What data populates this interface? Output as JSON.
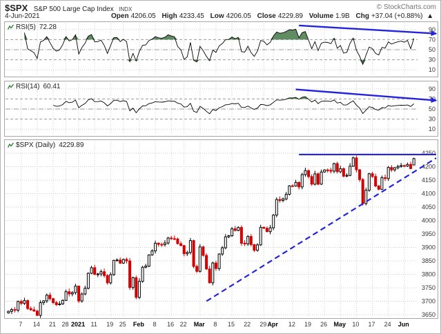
{
  "header": {
    "symbol": "$SPX",
    "name": "S&P 500 Large Cap Index",
    "exchange": "INDX",
    "date": "4-Jun-2021",
    "credit": "© StockCharts.com",
    "quote": {
      "open_label": "Open",
      "open": "4206.05",
      "high_label": "High",
      "high": "4233.45",
      "low_label": "Low",
      "low": "4206.05",
      "close_label": "Close",
      "close": "4229.89",
      "volume_label": "Volume",
      "volume": "1.9B",
      "chg_label": "Chg",
      "chg": "+37.04 (+0.88%)",
      "chg_dir": "▲"
    }
  },
  "panels": {
    "rsi5": {
      "label": "RSI(5)",
      "value": "72.28"
    },
    "rsi14": {
      "label": "RSI(14)",
      "value": "60.41"
    },
    "price": {
      "label": "$SPX (Daily)",
      "value": "4229.89"
    }
  },
  "chart_data": {
    "type": "candlestick",
    "title": "$SPX S&P 500 Large Cap Index - Daily with RSI(5) and RSI(14)",
    "price_yticks": [
      4250,
      4200,
      4150,
      4100,
      4050,
      4000,
      3950,
      3900,
      3850,
      3800,
      3750,
      3700,
      3650
    ],
    "price_ylim": [
      3650,
      4250
    ],
    "rsi_yticks": [
      90,
      70,
      50,
      30,
      10
    ],
    "x_tick_labels": [
      {
        "i": 4,
        "label": "7",
        "bold": false
      },
      {
        "i": 9,
        "label": "14",
        "bold": false
      },
      {
        "i": 14,
        "label": "21",
        "bold": false
      },
      {
        "i": 18,
        "label": "28",
        "bold": false
      },
      {
        "i": 22,
        "label": "2021",
        "bold": true
      },
      {
        "i": 27,
        "label": "11",
        "bold": false
      },
      {
        "i": 32,
        "label": "19",
        "bold": false
      },
      {
        "i": 36,
        "label": "25",
        "bold": false
      },
      {
        "i": 41,
        "label": "Feb",
        "bold": true
      },
      {
        "i": 46,
        "label": "8",
        "bold": false
      },
      {
        "i": 51,
        "label": "16",
        "bold": false
      },
      {
        "i": 55,
        "label": "22",
        "bold": false
      },
      {
        "i": 60,
        "label": "Mar",
        "bold": true
      },
      {
        "i": 65,
        "label": "8",
        "bold": false
      },
      {
        "i": 70,
        "label": "15",
        "bold": false
      },
      {
        "i": 75,
        "label": "22",
        "bold": false
      },
      {
        "i": 80,
        "label": "29",
        "bold": false
      },
      {
        "i": 83,
        "label": "Apr",
        "bold": true
      },
      {
        "i": 89,
        "label": "12",
        "bold": false
      },
      {
        "i": 94,
        "label": "19",
        "bold": false
      },
      {
        "i": 99,
        "label": "26",
        "bold": false
      },
      {
        "i": 104,
        "label": "May",
        "bold": true
      },
      {
        "i": 109,
        "label": "10",
        "bold": false
      },
      {
        "i": 114,
        "label": "17",
        "bold": false
      },
      {
        "i": 119,
        "label": "24",
        "bold": false
      },
      {
        "i": 124,
        "label": "Jun",
        "bold": true
      }
    ],
    "closes": [
      3662.45,
      3669.01,
      3666.72,
      3699.12,
      3691.96,
      3702.25,
      3672.82,
      3668.1,
      3663.46,
      3647.49,
      3694.62,
      3701.17,
      3722.48,
      3709.41,
      3694.92,
      3687.26,
      3690.01,
      3703.06,
      3735.36,
      3727.04,
      3732.04,
      3756.07,
      3700.65,
      3726.86,
      3748.14,
      3803.79,
      3824.68,
      3799.61,
      3801.19,
      3809.84,
      3795.54,
      3768.25,
      3798.91,
      3851.85,
      3853.07,
      3841.47,
      3855.36,
      3849.62,
      3750.77,
      3787.38,
      3714.24,
      3773.86,
      3826.31,
      3830.17,
      3871.74,
      3886.83,
      3915.59,
      3911.23,
      3909.88,
      3916.38,
      3934.83,
      3932.59,
      3931.33,
      3913.97,
      3906.71,
      3876.5,
      3881.37,
      3925.43,
      3829.34,
      3811.15,
      3901.82,
      3870.29,
      3819.72,
      3768.47,
      3841.94,
      3821.35,
      3875.44,
      3898.81,
      3939.34,
      3943.34,
      3968.94,
      3962.71,
      3974.12,
      3915.46,
      3913.1,
      3940.59,
      3910.52,
      3889.14,
      3909.52,
      3974.54,
      3971.09,
      3958.55,
      3972.89,
      4019.87,
      4077.91,
      4073.94,
      4079.95,
      4097.17,
      4128.8,
      4127.99,
      4141.59,
      4124.66,
      4170.42,
      4185.47,
      4163.26,
      4134.94,
      4173.42,
      4134.98,
      4180.17,
      4187.62,
      4186.72,
      4183.18,
      4211.47,
      4181.17,
      4192.66,
      4164.66,
      4167.59,
      4201.62,
      4232.6,
      4188.43,
      4152.1,
      4063.04,
      4112.5,
      4173.85,
      4163.29,
      4127.83,
      4115.68,
      4159.12,
      4155.86,
      4197.05,
      4188.13,
      4195.99,
      4200.88,
      4204.11,
      4202.04,
      4208.12,
      4192.85,
      4229.89
    ],
    "last_candle": {
      "open": 4206.05,
      "high": 4233.45,
      "low": 4206.05,
      "close": 4229.89
    },
    "indicators": [
      {
        "name": "RSI(5)",
        "period": 5,
        "last_value": 72.28,
        "overbought": 70,
        "oversold": 30,
        "midline": 50
      },
      {
        "name": "RSI(14)",
        "period": 14,
        "last_value": 60.41,
        "overbought": 70,
        "oversold": 30,
        "midline": 50
      }
    ],
    "annotations": [
      {
        "panel": "rsi5",
        "type": "arrow",
        "from": {
          "i": 91,
          "v": 98
        },
        "to": {
          "i": 135,
          "v": 82
        }
      },
      {
        "panel": "rsi14",
        "type": "arrow",
        "from": {
          "i": 90,
          "v": 89
        },
        "to": {
          "i": 135,
          "v": 67
        }
      },
      {
        "panel": "price",
        "type": "trendline",
        "style": "dashed",
        "from": {
          "i": 62,
          "v": 3700
        },
        "to": {
          "i": 134,
          "v": 4232
        }
      },
      {
        "panel": "price",
        "type": "hline",
        "style": "solid",
        "from": {
          "i": 91,
          "v": 4245
        },
        "to": {
          "i": 136,
          "v": 4245
        }
      }
    ],
    "colors": {
      "up": "#000000",
      "up_fill": "#ffffff",
      "down": "#d40000",
      "rsi_line": "#000000",
      "overbought_fill": "#4e7f52",
      "annotation": "#2323dd",
      "grid": "#cfcfcf",
      "band": "#9a9a9a",
      "axis_text": "#333333"
    }
  }
}
